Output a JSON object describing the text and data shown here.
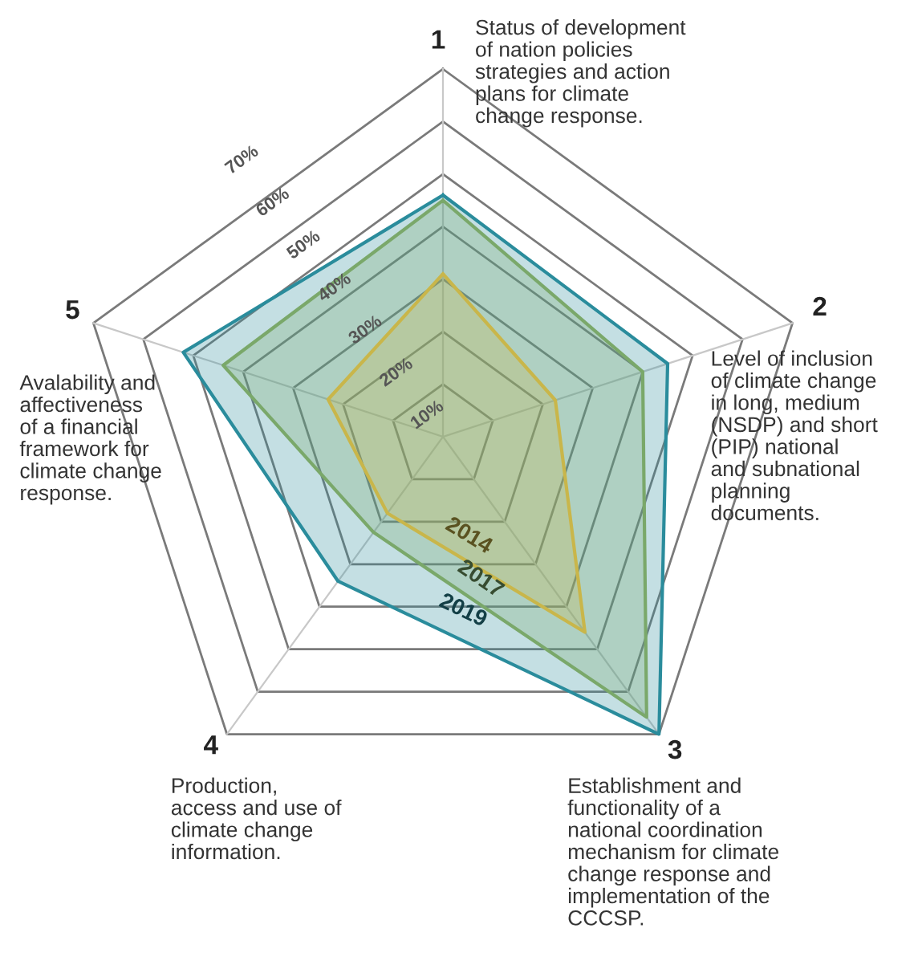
{
  "chart_data": {
    "type": "radar",
    "categories": [
      "1",
      "2",
      "3",
      "4",
      "5"
    ],
    "annotations": [
      "Status of development\nof nation policies\nstrategies and action\nplans for climate\nchange response.",
      "Level of inclusion\nof climate change\nin long, medium\n(NSDP) and short\n(PIP) national\nand subnational\nplanning\ndocuments.",
      "Establishment and\nfunctionality of a\nnational coordination\nmechanism for climate\nchange response and\nimplementation of the\nCCCSP.",
      "Production,\naccess and use of\nclimate change\ninformation.",
      "Avalability and\naffectiveness\nof a financial\nframework for\nclimate change\nresponse."
    ],
    "ylim": [
      0,
      70
    ],
    "yticks": [
      {
        "value": 10,
        "label": "10%"
      },
      {
        "value": 20,
        "label": "20%"
      },
      {
        "value": 30,
        "label": "30%"
      },
      {
        "value": 40,
        "label": "40%"
      },
      {
        "value": 50,
        "label": "50%"
      },
      {
        "value": 60,
        "label": "60%"
      },
      {
        "value": 70,
        "label": "70%"
      }
    ],
    "grid": true,
    "series": [
      {
        "name": "2019",
        "color": "#2a8c9c",
        "values": [
          46,
          45,
          70,
          34,
          52
        ]
      },
      {
        "name": "2017",
        "color": "#7aa86a",
        "values": [
          45,
          40,
          66,
          22.5,
          44
        ]
      },
      {
        "name": "2014",
        "color": "#c9b64a",
        "values": [
          31,
          22.5,
          46,
          18,
          23
        ]
      }
    ]
  }
}
